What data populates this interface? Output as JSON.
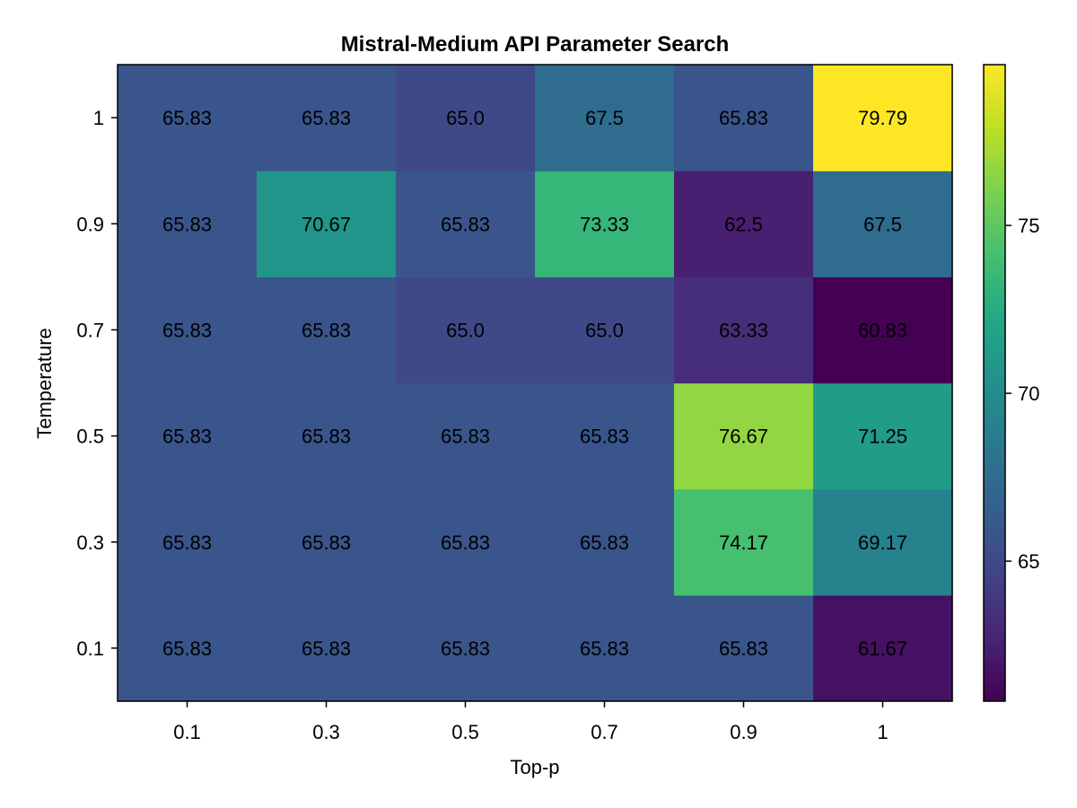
{
  "chart_data": {
    "type": "heatmap",
    "title": "Mistral-Medium API Parameter Search",
    "xlabel": "Top-p",
    "ylabel": "Temperature",
    "x_categories": [
      "0.1",
      "0.3",
      "0.5",
      "0.7",
      "0.9",
      "1"
    ],
    "y_categories": [
      "0.1",
      "0.3",
      "0.5",
      "0.7",
      "0.9",
      "1"
    ],
    "values": [
      [
        65.83,
        65.83,
        65.83,
        65.83,
        65.83,
        61.67
      ],
      [
        65.83,
        65.83,
        65.83,
        65.83,
        74.17,
        69.17
      ],
      [
        65.83,
        65.83,
        65.83,
        65.83,
        76.67,
        71.25
      ],
      [
        65.83,
        65.83,
        65.0,
        65.0,
        63.33,
        60.83
      ],
      [
        65.83,
        70.67,
        65.83,
        73.33,
        62.5,
        67.5
      ],
      [
        65.83,
        65.83,
        65.0,
        67.5,
        65.83,
        79.79
      ]
    ],
    "value_labels": [
      [
        "65.83",
        "65.83",
        "65.83",
        "65.83",
        "65.83",
        "61.67"
      ],
      [
        "65.83",
        "65.83",
        "65.83",
        "65.83",
        "74.17",
        "69.17"
      ],
      [
        "65.83",
        "65.83",
        "65.83",
        "65.83",
        "76.67",
        "71.25"
      ],
      [
        "65.83",
        "65.83",
        "65.0",
        "65.0",
        "63.33",
        "60.83"
      ],
      [
        "65.83",
        "70.67",
        "65.83",
        "73.33",
        "62.5",
        "67.5"
      ],
      [
        "65.83",
        "65.83",
        "65.0",
        "67.5",
        "65.83",
        "79.79"
      ]
    ],
    "colormap": "viridis",
    "color_range": [
      60.83,
      79.79
    ],
    "colorbar_ticks": [
      "65",
      "70",
      "75"
    ],
    "grid": false
  }
}
